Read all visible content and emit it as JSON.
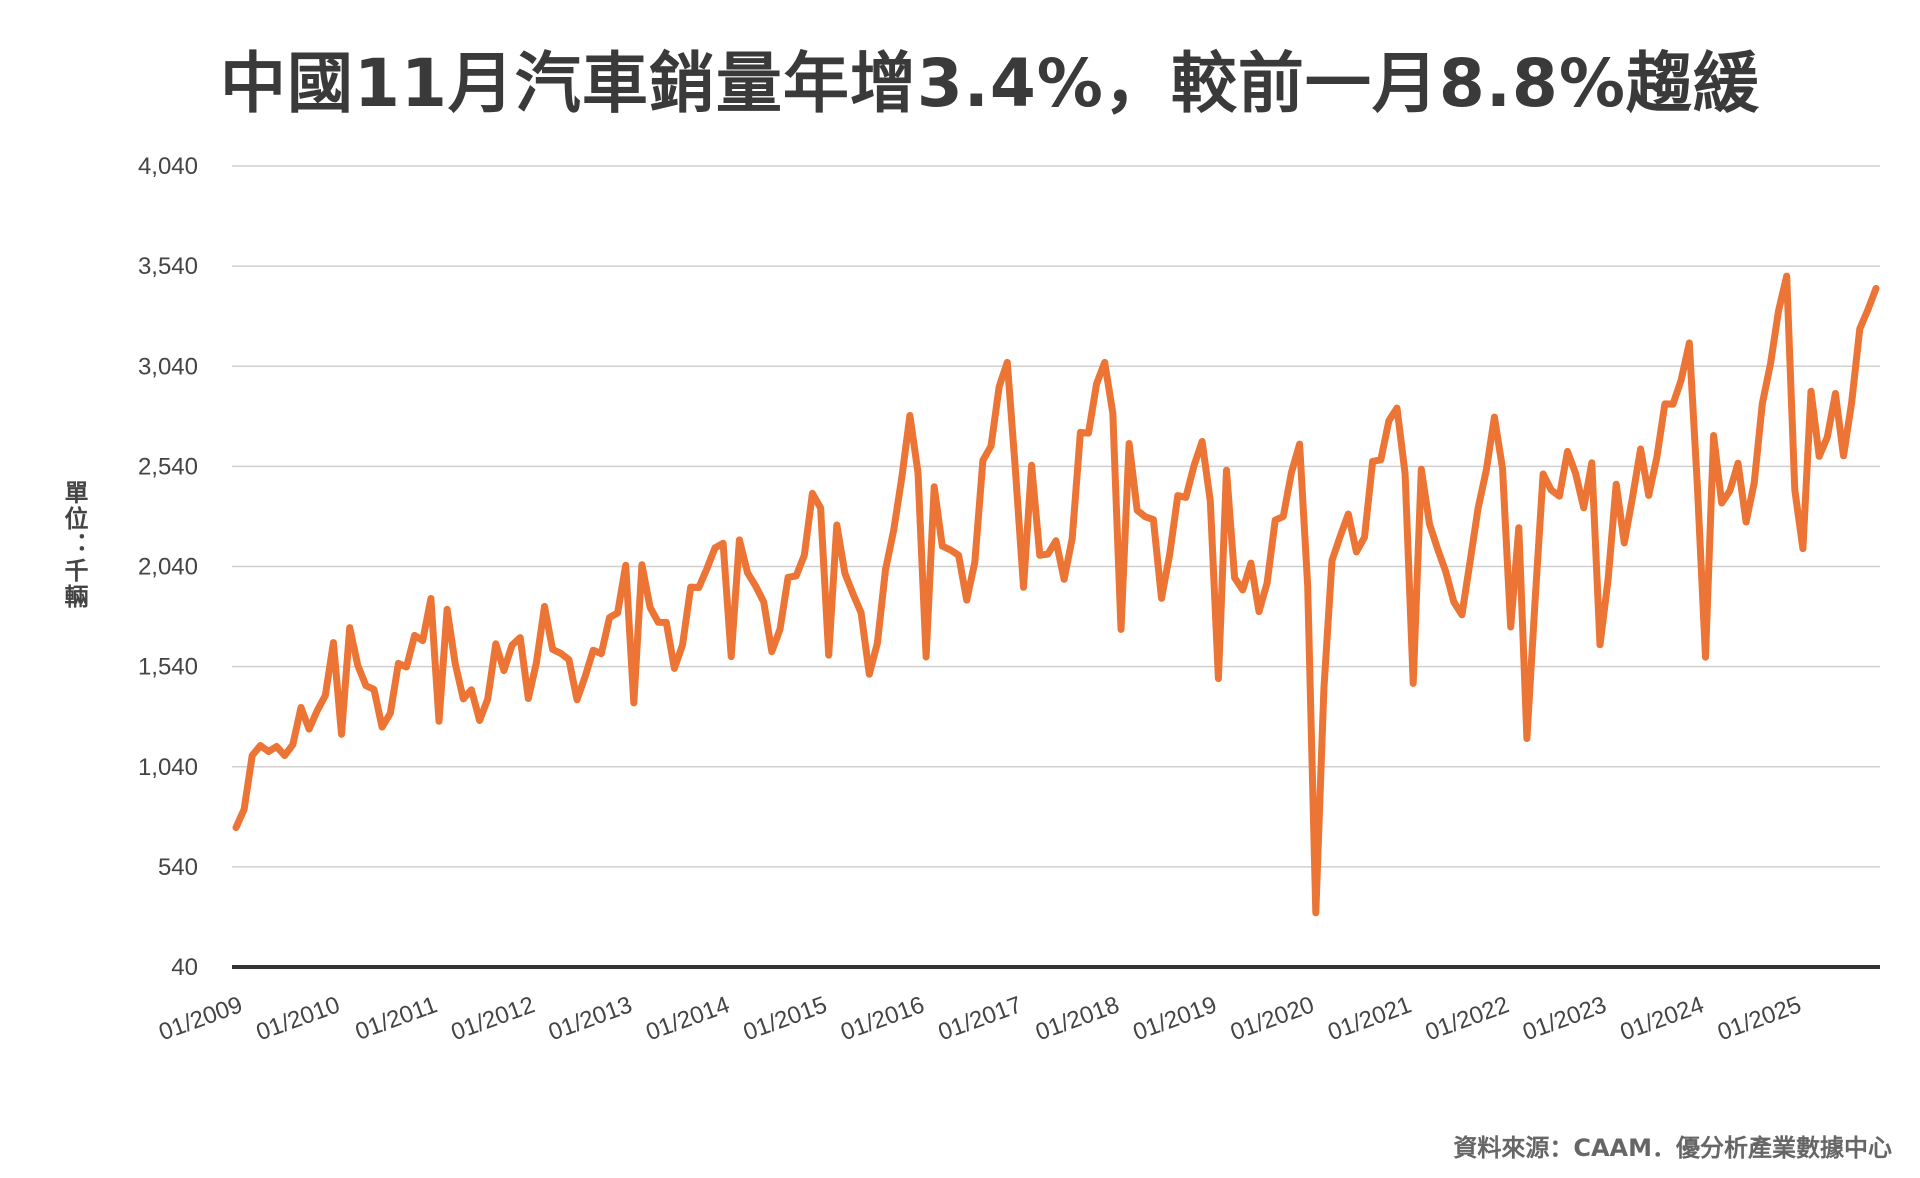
{
  "chart_data": {
    "type": "line",
    "title": "中國11月汽車銷量年增3.4%，較前一月8.8%趨緩",
    "ylabel": "單位：千輛",
    "xlabel": "",
    "ylim": [
      40,
      4040
    ],
    "yticks": [
      "4,040",
      "3,540",
      "3,040",
      "2,540",
      "2,040",
      "1,540",
      "1,040",
      "540",
      "40"
    ],
    "ytick_values": [
      4040,
      3540,
      3040,
      2540,
      2040,
      1540,
      1040,
      540,
      40
    ],
    "x_start": "01/2009",
    "x_end": "11/2025",
    "xticks": [
      "01/2009",
      "01/2010",
      "01/2011",
      "01/2012",
      "01/2013",
      "01/2014",
      "01/2015",
      "01/2016",
      "01/2017",
      "01/2018",
      "01/2019",
      "01/2020",
      "01/2021",
      "01/2022",
      "01/2023",
      "01/2024",
      "01/2025"
    ],
    "grid": true,
    "line_color": "#ec7434",
    "series": [
      {
        "values": [
          736,
          827,
          1096,
          1146,
          1116,
          1141,
          1096,
          1150,
          1336,
          1228,
          1320,
          1396,
          1660,
          1202,
          1735,
          1546,
          1445,
          1426,
          1238,
          1307,
          1556,
          1538,
          1696,
          1670,
          1880,
          1267,
          1826,
          1555,
          1379,
          1425,
          1271,
          1378,
          1654,
          1520,
          1647,
          1685,
          1381,
          1559,
          1840,
          1626,
          1606,
          1575,
          1375,
          1490,
          1622,
          1605,
          1785,
          1808,
          2046,
          1359,
          2049,
          1836,
          1762,
          1761,
          1531,
          1648,
          1937,
          1935,
          2029,
          2133,
          2156,
          1590,
          2173,
          2009,
          1943,
          1863,
          1615,
          1727,
          1986,
          1993,
          2096,
          2405,
          2332,
          1597,
          2247,
          2006,
          1903,
          1809,
          1502,
          1658,
          2024,
          2219,
          2480,
          2794,
          2509,
          1588,
          2438,
          2142,
          2123,
          2096,
          1872,
          2061,
          2570,
          2641,
          2939,
          3059,
          2522,
          1936,
          2546,
          2096,
          2102,
          2169,
          1976,
          2180,
          2710,
          2706,
          2953,
          3059,
          2807,
          1726,
          2654,
          2320,
          2288,
          2274,
          1881,
          2101,
          2394,
          2385,
          2544,
          2664,
          2366,
          1480,
          2521,
          1984,
          1923,
          2057,
          1815,
          1958,
          2271,
          2290,
          2509,
          2651,
          1941,
          310,
          1430,
          2070,
          2191,
          2302,
          2113,
          2186,
          2565,
          2573,
          2768,
          2831,
          2503,
          1456,
          2526,
          2252,
          2128,
          2015,
          1863,
          1799,
          2066,
          2334,
          2521,
          2786,
          2531,
          1738,
          2234,
          1181,
          1862,
          2502,
          2422,
          2391,
          2615,
          2505,
          2333,
          2558,
          1649,
          1976,
          2451,
          2158,
          2382,
          2627,
          2395,
          2584,
          2852,
          2851,
          2970,
          3156,
          2439,
          1587,
          2694,
          2357,
          2418,
          2556,
          2262,
          2458,
          2853,
          3052,
          3319,
          3490,
          2422,
          2129,
          2915,
          2590,
          2686,
          2904,
          2593,
          2857,
          3227,
          3322,
          3429
        ]
      }
    ]
  },
  "source_note": "資料來源：CAAM．優分析產業數據中心"
}
